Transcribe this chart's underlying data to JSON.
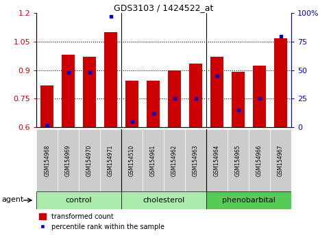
{
  "title": "GDS3103 / 1424522_at",
  "samples": [
    "GSM154968",
    "GSM154969",
    "GSM154970",
    "GSM154971",
    "GSM154510",
    "GSM154961",
    "GSM154962",
    "GSM154963",
    "GSM154964",
    "GSM154965",
    "GSM154966",
    "GSM154967"
  ],
  "transformed_count": [
    0.82,
    0.98,
    0.97,
    1.1,
    0.845,
    0.845,
    0.9,
    0.935,
    0.97,
    0.89,
    0.925,
    1.07
  ],
  "percentile_rank": [
    2,
    48,
    48,
    97,
    5,
    12,
    25,
    25,
    45,
    15,
    25,
    80
  ],
  "groups": [
    {
      "label": "control",
      "start": 0,
      "end": 4,
      "color": "#aaeaaa"
    },
    {
      "label": "cholesterol",
      "start": 4,
      "end": 8,
      "color": "#aaeaaa"
    },
    {
      "label": "phenobarbital",
      "start": 8,
      "end": 12,
      "color": "#55cc55"
    }
  ],
  "ylim_left": [
    0.6,
    1.2
  ],
  "ylim_right": [
    0,
    100
  ],
  "yticks_left": [
    0.6,
    0.75,
    0.9,
    1.05,
    1.2
  ],
  "yticks_right": [
    0,
    25,
    50,
    75,
    100
  ],
  "bar_color": "#cc0000",
  "dot_color": "#0000cc",
  "bg_color": "#ffffff",
  "axis_label_color_left": "#cc0000",
  "axis_label_color_right": "#0000cc",
  "agent_label": "agent",
  "legend_items": [
    "transformed count",
    "percentile rank within the sample"
  ],
  "group_dividers": [
    3.5,
    7.5
  ],
  "tick_box_color": "#cccccc"
}
